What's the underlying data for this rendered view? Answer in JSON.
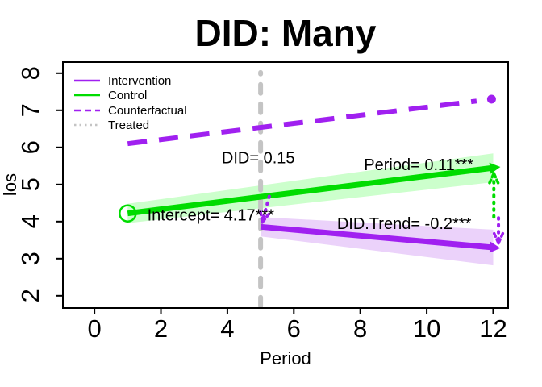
{
  "title": "DID: Many",
  "axes": {
    "x_label": "Period",
    "y_label": "los",
    "x_ticks": [
      "0",
      "2",
      "4",
      "6",
      "8",
      "10",
      "12"
    ],
    "y_ticks": [
      "2",
      "3",
      "4",
      "5",
      "6",
      "7",
      "8"
    ]
  },
  "legend": {
    "items": [
      {
        "label": "Intervention",
        "color": "#A020F0",
        "dash": "",
        "style": "solid"
      },
      {
        "label": "Control",
        "color": "#00DC00",
        "dash": "",
        "style": "solid"
      },
      {
        "label": "Counterfactual",
        "color": "#A020F0",
        "dash": "8 5",
        "style": "dashed"
      },
      {
        "label": "Treated",
        "color": "#C4C4C4",
        "dash": "2.5 4",
        "style": "dotted"
      }
    ]
  },
  "colors": {
    "intervention": "#A020F0",
    "control": "#00DC00",
    "control_band": "#CCFFCC",
    "intervention_band": "#EBD2FA",
    "treated_line": "#C4C4C4",
    "text": "#000000"
  },
  "chart_data": {
    "type": "line",
    "title": "DID: Many",
    "xlabel": "Period",
    "ylabel": "los",
    "xlim": [
      -0.95,
      12.45
    ],
    "ylim": [
      1.67,
      8.3
    ],
    "x_ticks": [
      0,
      2,
      4,
      6,
      8,
      10,
      12
    ],
    "y_ticks": [
      2,
      3,
      4,
      5,
      6,
      7,
      8
    ],
    "grid": false,
    "legend_position": "top-left",
    "series": [
      {
        "name": "Counterfactual",
        "color": "#A020F0",
        "width": 6,
        "dash": "24 15",
        "points": [
          [
            1,
            6.1
          ],
          [
            11.5,
            7.25
          ]
        ],
        "end_marker": {
          "shape": "filled-circle",
          "at": [
            11.95,
            7.3
          ],
          "r": 5.5
        }
      },
      {
        "name": "Control",
        "color": "#00DC00",
        "width": 7,
        "points": [
          [
            1,
            4.22
          ],
          [
            12,
            5.45
          ]
        ],
        "end_arrow": true,
        "start_marker": {
          "shape": "open-circle",
          "at": [
            1,
            4.22
          ],
          "r": 10
        },
        "band": {
          "color": "#CCFFCC",
          "upper": [
            [
              1,
              4.48
            ],
            [
              12,
              5.84
            ]
          ],
          "lower": [
            [
              1,
              3.96
            ],
            [
              12,
              5.06
            ]
          ]
        }
      },
      {
        "name": "Intervention",
        "color": "#A020F0",
        "width": 7,
        "points": [
          [
            5,
            3.86
          ],
          [
            12,
            3.3
          ]
        ],
        "end_arrow": true,
        "band": {
          "color": "#EBD2FA",
          "upper": [
            [
              5,
              4.12
            ],
            [
              12,
              3.78
            ]
          ],
          "lower": [
            [
              5,
              3.6
            ],
            [
              12,
              2.82
            ]
          ]
        }
      }
    ],
    "vline": {
      "x": 5,
      "y1": 1.72,
      "y2": 8.02,
      "color": "#C4C4C4",
      "width": 6,
      "dash": "11 13",
      "label": "Treated"
    },
    "arrows": [
      {
        "name": "gap-arrow-green",
        "color": "#00DC00",
        "from": [
          12.02,
          4.12
        ],
        "to": [
          12.02,
          5.3
        ]
      },
      {
        "name": "gap-arrow-purple",
        "color": "#A020F0",
        "from": [
          12.16,
          4.1
        ],
        "to": [
          12.16,
          3.42
        ]
      },
      {
        "name": "intervention-start-arrow",
        "color": "#A020F0",
        "from": [
          5.26,
          4.68
        ],
        "to": [
          5.05,
          3.98
        ]
      }
    ],
    "annotations": [
      {
        "text": "DID= 0.15",
        "x": 4.93,
        "y": 5.72
      },
      {
        "text": "Period= 0.11***",
        "x": 9.76,
        "y": 5.54
      },
      {
        "text": "Intercept= 4.17***",
        "x": 3.5,
        "y": 4.18
      },
      {
        "text": "DID.Trend= -0.2***",
        "x": 9.32,
        "y": 3.95
      }
    ]
  }
}
